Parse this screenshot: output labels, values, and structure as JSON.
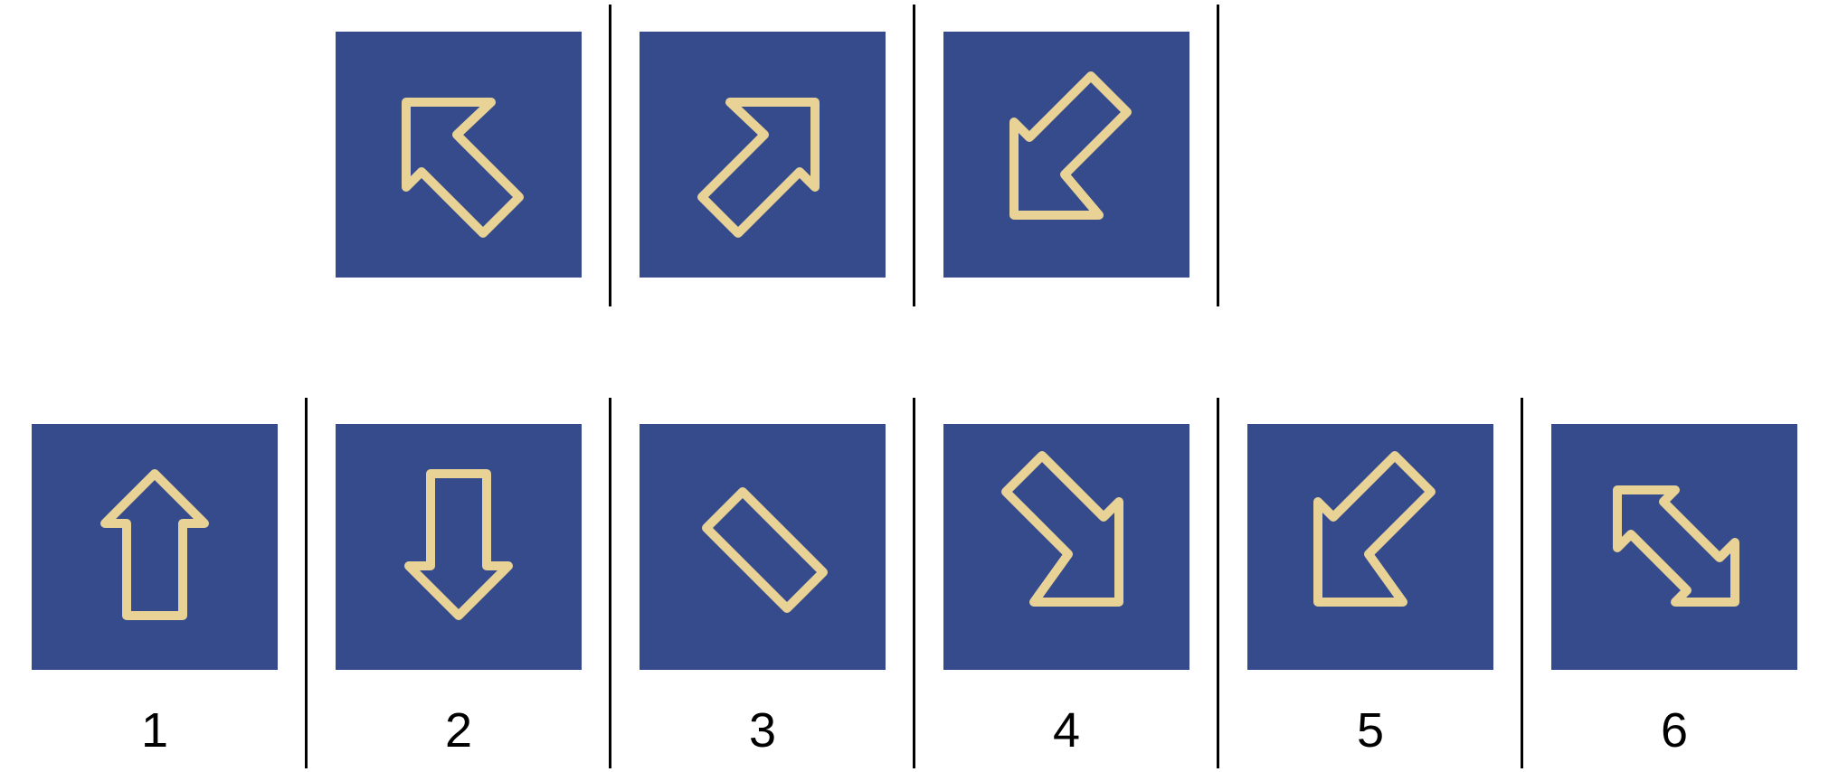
{
  "colors": {
    "tile": "#354b8c",
    "arrow": "#e8d296",
    "divider": "#000000",
    "text": "#000000"
  },
  "question_row": [
    {
      "icon": "arrow-up-left-icon"
    },
    {
      "icon": "arrow-up-right-icon"
    },
    {
      "icon": "arrow-down-left-icon"
    }
  ],
  "answer_row": [
    {
      "label": "1",
      "icon": "arrow-up-icon"
    },
    {
      "label": "2",
      "icon": "arrow-down-icon"
    },
    {
      "label": "3",
      "icon": "bar-icon"
    },
    {
      "label": "4",
      "icon": "arrow-down-right-icon"
    },
    {
      "label": "5",
      "icon": "arrow-down-left-icon"
    },
    {
      "label": "6",
      "icon": "double-arrow-diagonal-icon"
    }
  ]
}
